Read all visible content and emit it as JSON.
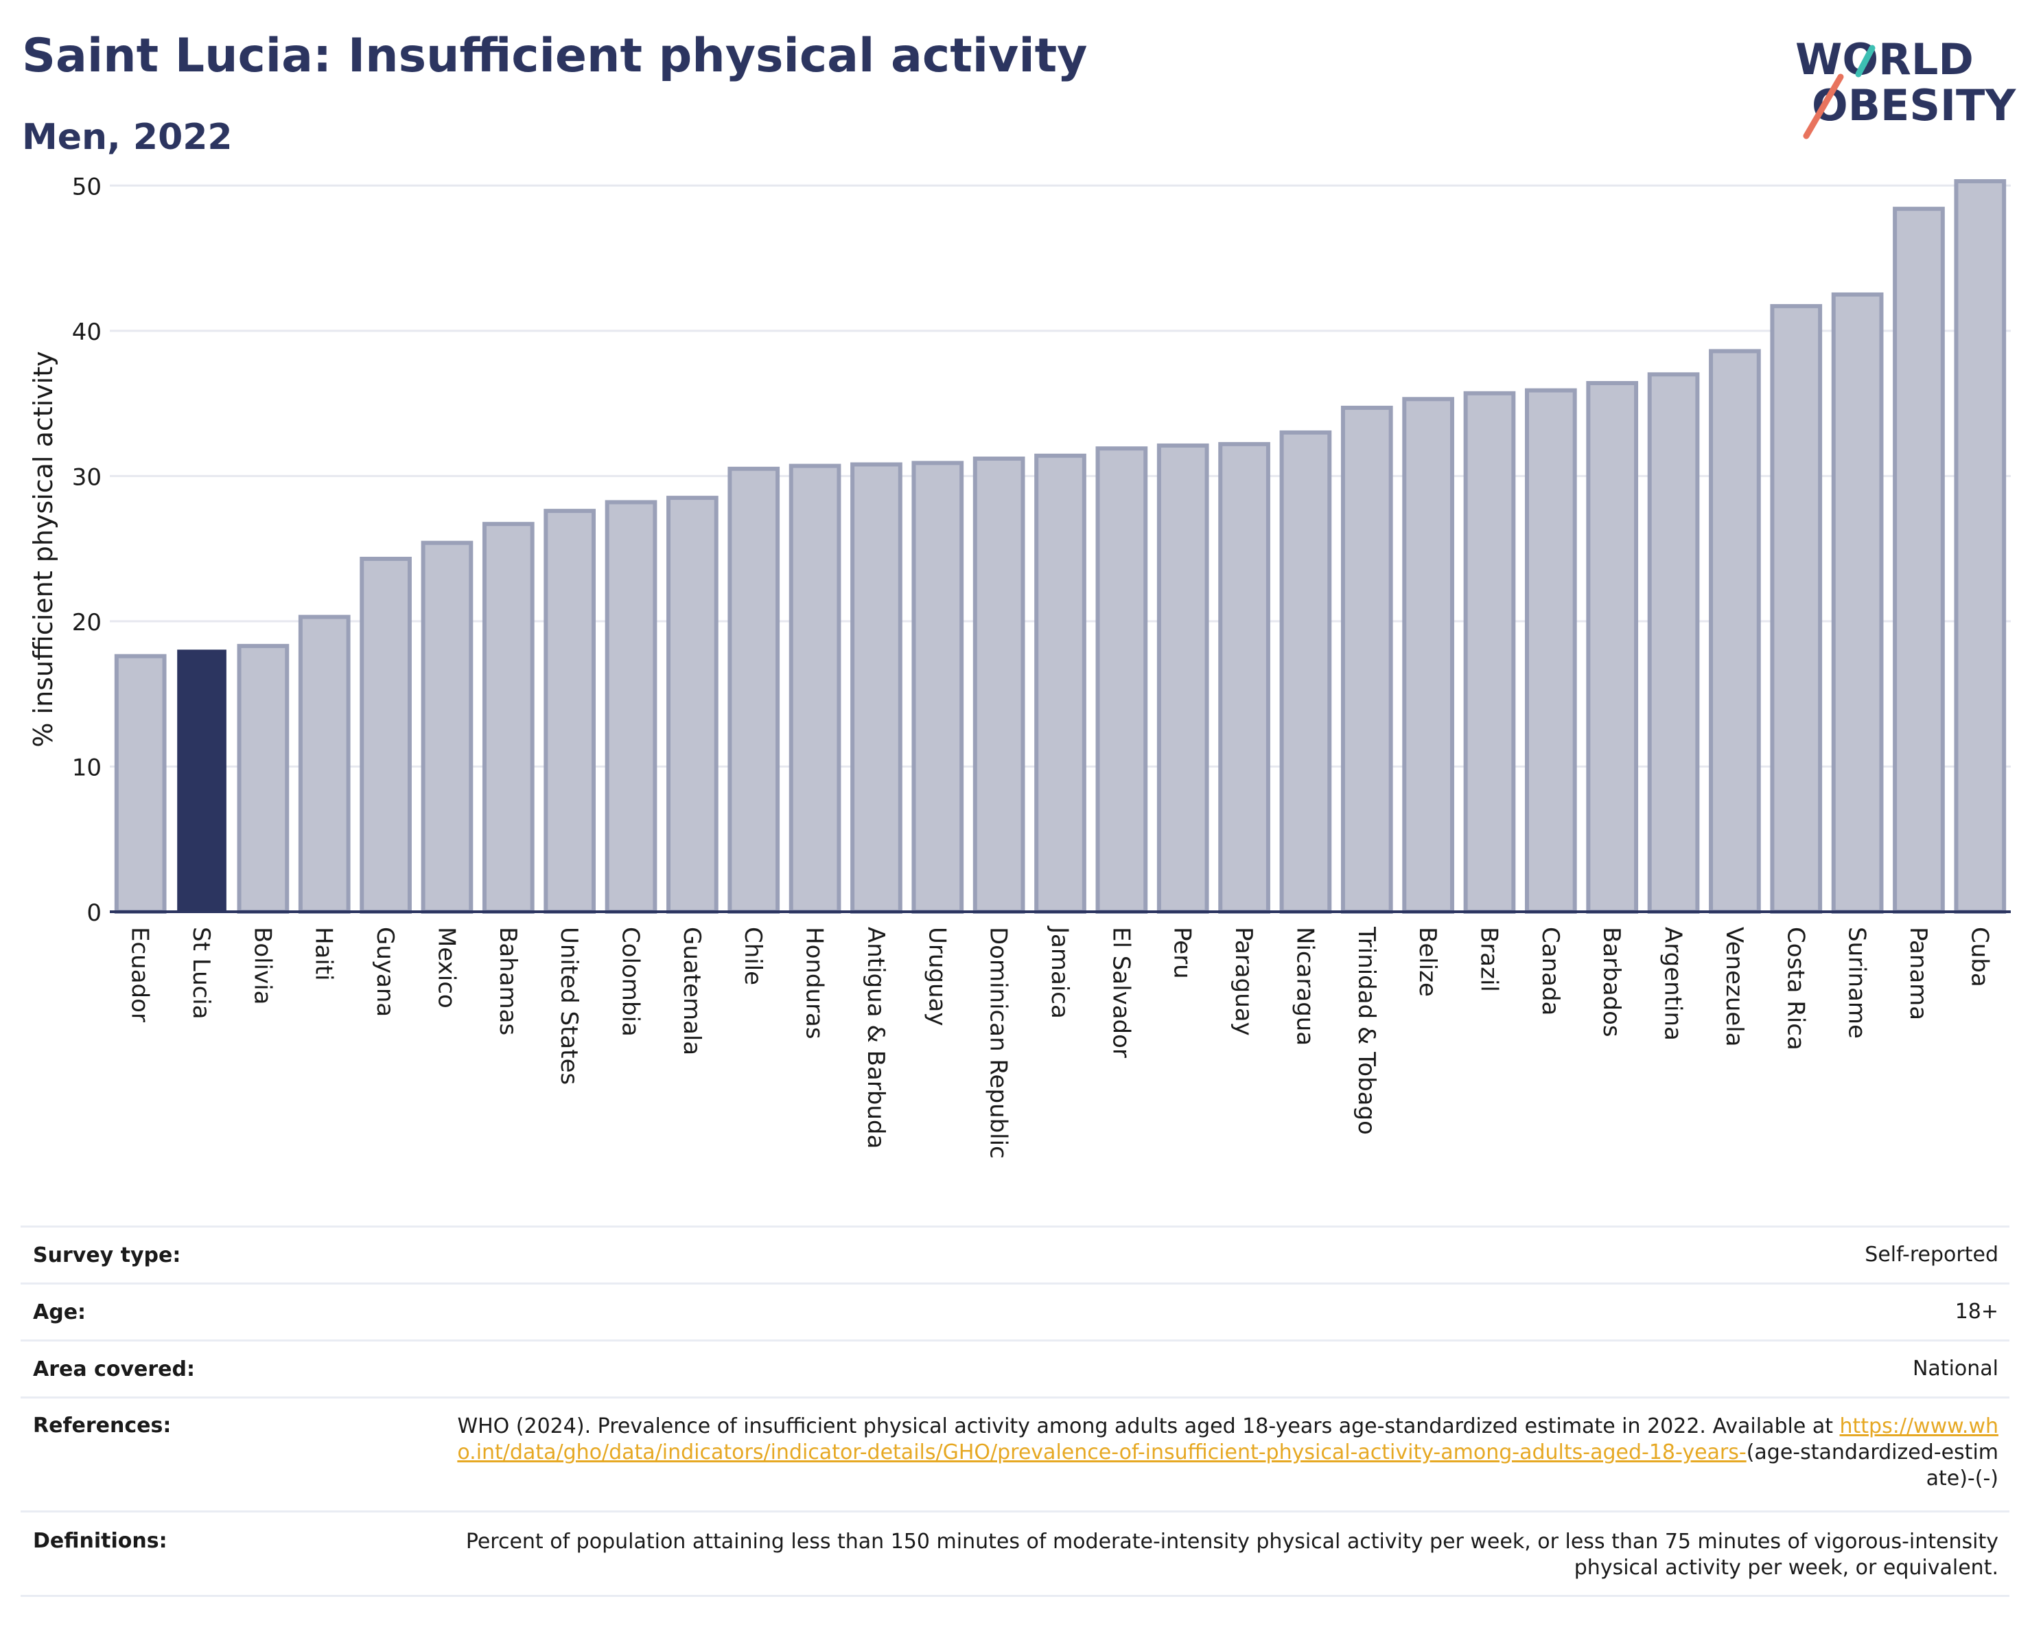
{
  "header": {
    "title": "Saint Lucia: Insufficient physical activity",
    "subtitle": "Men, 2022"
  },
  "logo": {
    "line1": "WORLD",
    "line2": "OBESITY",
    "accent_teal": "#3dbfb3",
    "accent_coral": "#e8735d",
    "text_color": "#2c3560"
  },
  "chart_data": {
    "type": "bar",
    "title": "",
    "xlabel": "",
    "ylabel": "% insufficient physical activity",
    "ylim": [
      0,
      52
    ],
    "yticks": [
      0,
      10,
      20,
      30,
      40,
      50
    ],
    "grid": true,
    "highlight": "St Lucia",
    "bar_color": "#bfc2d0",
    "bar_edge_color": "#9aa0b8",
    "highlight_color": "#2c3560",
    "categories": [
      "Ecuador",
      "St Lucia",
      "Bolivia",
      "Haiti",
      "Guyana",
      "Mexico",
      "Bahamas",
      "United States",
      "Colombia",
      "Guatemala",
      "Chile",
      "Honduras",
      "Antigua & Barbuda",
      "Uruguay",
      "Dominican Republic",
      "Jamaica",
      "El Salvador",
      "Peru",
      "Paraguay",
      "Nicaragua",
      "Trinidad & Tobago",
      "Belize",
      "Brazil",
      "Canada",
      "Barbados",
      "Argentina",
      "Venezuela",
      "Costa Rica",
      "Suriname",
      "Panama",
      "Cuba"
    ],
    "values": [
      17.6,
      18.0,
      18.3,
      20.3,
      24.3,
      25.4,
      26.7,
      27.6,
      28.2,
      28.5,
      30.5,
      30.7,
      30.8,
      30.9,
      31.2,
      31.4,
      31.9,
      32.1,
      32.2,
      33.0,
      34.7,
      35.3,
      35.7,
      35.9,
      36.4,
      37.0,
      38.6,
      41.7,
      42.5,
      48.4,
      50.3
    ]
  },
  "meta": [
    {
      "label": "Survey type:",
      "value": "Self-reported"
    },
    {
      "label": "Age:",
      "value": "18+"
    },
    {
      "label": "Area covered:",
      "value": "National"
    },
    {
      "label": "References:",
      "value_pre": "WHO (2024). Prevalence of insufficient physical activity among adults aged 18-years age-standardized estimate in 2022. Available at",
      "link": "https://www.who.int/data/gho/data/indicators/indicator-details/GHO/prevalence-of-insufficient-physical-activity-among-adults-aged-18-years-",
      "value_post": "(age-standardized-estimate)-(-)"
    },
    {
      "label": "Definitions:",
      "value": "Percent of population attaining less than 150 minutes of moderate-intensity physical activity per week, or less than 75 minutes of vigorous-intensity physical activity per week, or equivalent."
    }
  ]
}
